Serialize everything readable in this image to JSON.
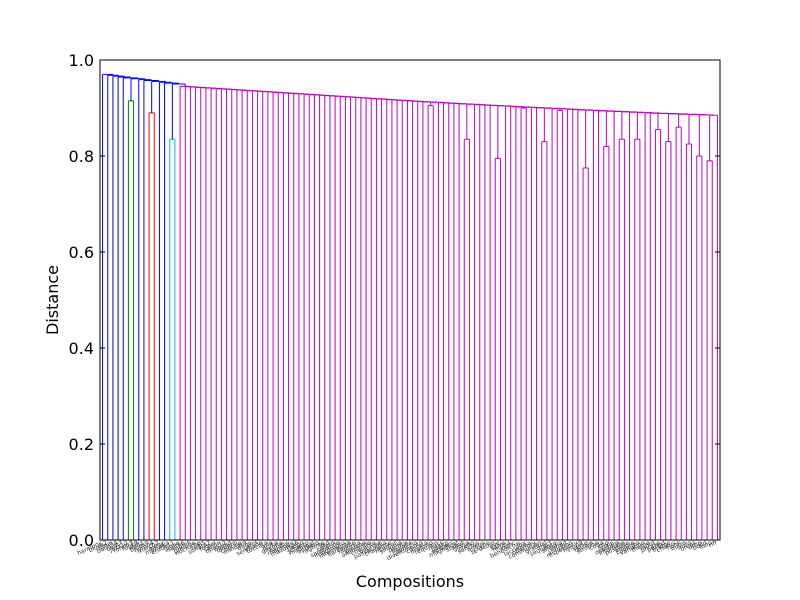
{
  "chart_data": {
    "type": "dendrogram",
    "xlabel": "Compositions",
    "ylabel": "Distance",
    "ylim": [
      0.0,
      1.0
    ],
    "yticks": [
      0.0,
      0.2,
      0.4,
      0.6,
      0.8,
      1.0
    ],
    "ytick_labels": [
      "0.0",
      "0.2",
      "0.4",
      "0.6",
      "0.8",
      "1.0"
    ],
    "grid": false,
    "leaf_count": 120,
    "colors": {
      "blue": "#0000ff",
      "green": "#008000",
      "red": "#ff0000",
      "cyan": "#00bfbf",
      "magenta": "#bf00bf",
      "axis": "#000000"
    },
    "clusters": [
      {
        "name": "",
        "color": "blue",
        "leaves": 5
      },
      {
        "name": "",
        "color": "green",
        "leaves": 2,
        "merge_height": 0.915
      },
      {
        "name": "",
        "color": "blue",
        "leaves": 2
      },
      {
        "name": "",
        "color": "red",
        "leaves": 2,
        "merge_height": 0.89
      },
      {
        "name": "",
        "color": "blue",
        "leaves": 2
      },
      {
        "name": "",
        "color": "cyan",
        "leaves": 2,
        "merge_height": 0.835
      },
      {
        "name": "",
        "color": "magenta",
        "leaves": 105
      }
    ],
    "top_merges": [
      {
        "color": "blue",
        "height": 0.97
      },
      {
        "color": "blue",
        "height": 0.96
      },
      {
        "color": "blue",
        "height": 0.955
      },
      {
        "color": "blue",
        "height": 0.95
      },
      {
        "color": "magenta",
        "height": 0.945
      },
      {
        "color": "magenta",
        "height": 0.94
      },
      {
        "color": "magenta",
        "height": 0.935
      },
      {
        "color": "magenta",
        "height": 0.925
      },
      {
        "color": "magenta",
        "height": 0.918
      },
      {
        "color": "magenta",
        "height": 0.915
      },
      {
        "color": "magenta",
        "height": 0.912
      },
      {
        "color": "magenta",
        "height": 0.91
      },
      {
        "color": "magenta",
        "height": 0.905
      },
      {
        "color": "magenta",
        "height": 0.9
      },
      {
        "color": "magenta",
        "height": 0.895
      },
      {
        "color": "magenta",
        "height": 0.89
      },
      {
        "color": "magenta",
        "height": 0.885
      },
      {
        "color": "magenta",
        "height": 0.88
      }
    ],
    "inner_merges": [
      0.905,
      0.835,
      0.795,
      0.9,
      0.83,
      0.895,
      0.775,
      0.82,
      0.835,
      0.835,
      0.855,
      0.83,
      0.86,
      0.825,
      0.8,
      0.79,
      0.765,
      0.875,
      0.835,
      0.83,
      0.86,
      0.89
    ],
    "leaf_labels": [
      "harmony",
      "blues2",
      "tonal",
      "bach34",
      "beat7",
      "jazz12",
      "rondo3",
      "funk8",
      "waltz",
      "blues9",
      "hymn4",
      "march2",
      "elegy",
      "mazurka",
      "etude11",
      "gigue",
      "suite6",
      "motet",
      "prelude",
      "nocturne",
      "reel5",
      "sonata2",
      "fugue",
      "canon",
      "opus12",
      "ballad",
      "lament",
      "chorale",
      "minuet9",
      "dirge",
      "carol",
      "serenade",
      "toccata",
      "aria",
      "polka",
      "gavotte",
      "lullaby",
      "rhapsody",
      "mazurka6",
      "tango",
      "scherzo",
      "madrigal",
      "anthem",
      "ragtime",
      "lied",
      "bolero",
      "sarabande",
      "impromptu",
      "intermezzo",
      "barcarolle",
      "fantasia",
      "pavane",
      "allemande",
      "courante",
      "bourree",
      "passacaglia",
      "chaconne",
      "ricercar",
      "sinfonia",
      "partita",
      "ballade",
      "capriccio",
      "divertimento",
      "cantata",
      "oratorio",
      "requiem",
      "mass",
      "psalm",
      "vespers",
      "magnificat",
      "stabat",
      "gloria",
      "credo",
      "sanctus",
      "agnus",
      "kyrie",
      "te-deum",
      "ave",
      "salve",
      "regina",
      "nunc",
      "benedictus",
      "lux",
      "lacrimosa",
      "offertory",
      "communion",
      "gradual",
      "tract",
      "sequence",
      "alleluia",
      "introit",
      "antiphon",
      "responsory",
      "hymn9",
      "verse",
      "refrain",
      "strophe",
      "coda",
      "trio",
      "finale",
      "overture",
      "interlude",
      "postlude",
      "encore",
      "cadenza",
      "variation",
      "theme",
      "motif",
      "phrase",
      "period",
      "bridge",
      "chorus",
      "hook",
      "outro",
      "intro",
      "break",
      "drop",
      "build",
      "loop",
      "riff"
    ]
  }
}
